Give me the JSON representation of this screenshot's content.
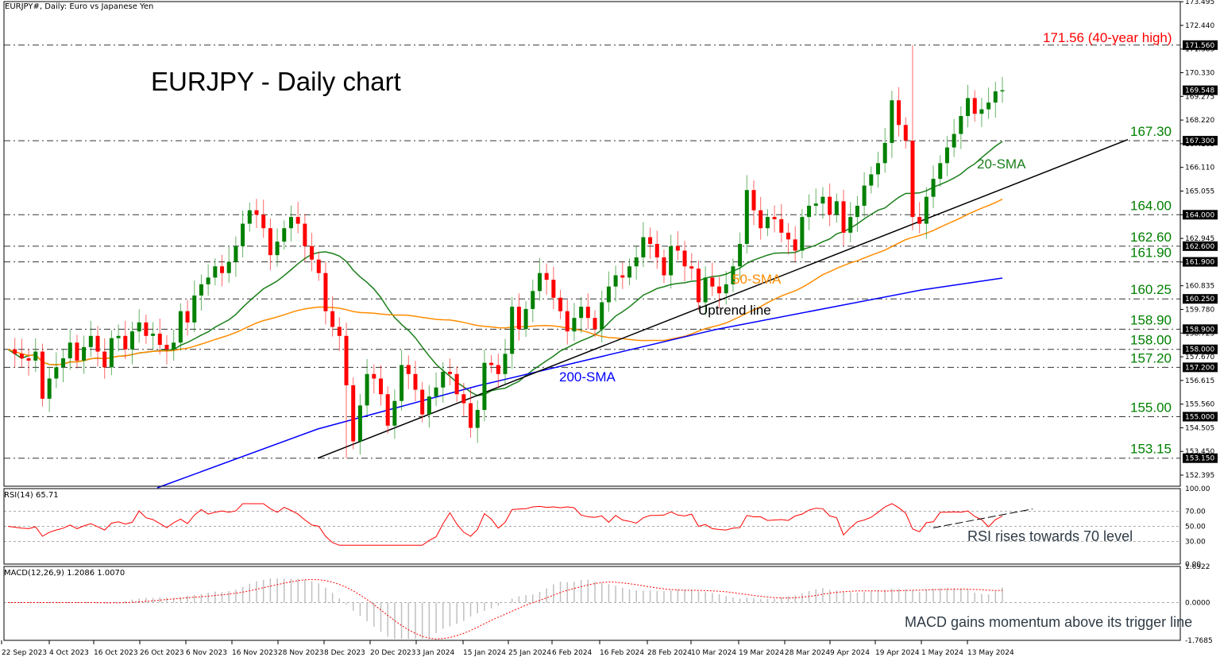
{
  "header": {
    "title": "EURJPY#, Daily:  Euro vs Japanese Yen"
  },
  "chart_title": "EURJPY - Daily chart",
  "annotations": {
    "high": "171.56 (40-year high)",
    "sma20": "20-SMA",
    "sma50": "50-SMA",
    "sma200": "200-SMA",
    "uptrend": "Uptrend line",
    "rsi_note": "RSI rises towards 70 level",
    "macd_note": "MACD gains momentum above its trigger line"
  },
  "rsi_label": "RSI(14) 65.71",
  "macd_label": "MACD(12,26,9) 1.2086 1.0070",
  "colors": {
    "bull": "#008000",
    "bear": "#ff0000",
    "sma20": "#1a7f1a",
    "sma50": "#ff8c00",
    "sma200": "#0000ff",
    "trend": "#000000",
    "level_text": "#008000",
    "high_text": "#ff0000",
    "rsi": "#ff0000",
    "macd_signal": "#ff0000",
    "macd_hist": "#c0c0c0"
  },
  "chart_data": [
    {
      "type": "candlestick",
      "title": "EURJPY - Daily chart",
      "ylim": [
        151.9,
        173.5
      ],
      "yticks": [
        173.495,
        172.44,
        171.385,
        170.33,
        169.275,
        168.22,
        167.165,
        166.11,
        165.055,
        164.0,
        162.945,
        161.89,
        160.835,
        159.78,
        158.725,
        157.67,
        156.615,
        155.56,
        154.505,
        153.45,
        152.395
      ],
      "price_tags": [
        "171.560",
        "169.548",
        "167.300",
        "164.000",
        "162.600",
        "161.900",
        "160.250",
        "158.900",
        "158.000",
        "157.200",
        "155.000",
        "153.150"
      ],
      "horizontal_levels": [
        171.56,
        167.3,
        164.0,
        162.6,
        161.9,
        160.25,
        158.9,
        158.0,
        157.2,
        155.0,
        153.15
      ],
      "level_labels": [
        "167.30",
        "164.00",
        "162.60",
        "161.90",
        "160.25",
        "158.90",
        "158.00",
        "157.20",
        "155.00",
        "153.15"
      ],
      "x_labels": [
        "22 Sep 2023",
        "4 Oct 2023",
        "16 Oct 2023",
        "26 Oct 2023",
        "6 Nov 2023",
        "16 Nov 2023",
        "28 Nov 2023",
        "8 Dec 2023",
        "20 Dec 2023",
        "3 Jan 2024",
        "15 Jan 2024",
        "25 Jan 2024",
        "6 Feb 2024",
        "16 Feb 2024",
        "28 Feb 2024",
        "10 Mar 2024",
        "19 Mar 2024",
        "28 Mar 2024",
        "9 Apr 2024",
        "19 Apr 2024",
        "1 May 2024",
        "13 May 2024"
      ],
      "close_path": [
        158.0,
        157.8,
        157.6,
        157.5,
        157.9,
        155.8,
        156.7,
        157.2,
        157.6,
        158.3,
        157.5,
        158.1,
        158.6,
        157.9,
        157.2,
        158.5,
        158.6,
        158.0,
        158.8,
        159.2,
        158.6,
        158.7,
        158.2,
        158.0,
        158.3,
        159.7,
        159.2,
        160.4,
        160.9,
        161.2,
        161.7,
        161.4,
        161.9,
        162.6,
        163.6,
        164.2,
        164.0,
        163.4,
        162.2,
        162.8,
        163.4,
        163.9,
        163.6,
        162.6,
        162.0,
        161.4,
        159.7,
        159.0,
        158.6,
        156.4,
        153.9,
        155.5,
        156.9,
        156.7,
        156.0,
        154.6,
        155.7,
        157.3,
        156.9,
        156.2,
        155.1,
        155.9,
        156.3,
        157.0,
        156.9,
        156.0,
        155.6,
        154.5,
        155.3,
        157.4,
        157.3,
        156.9,
        157.8,
        159.9,
        158.9,
        159.8,
        160.6,
        161.4,
        161.1,
        160.3,
        159.7,
        158.8,
        159.4,
        159.9,
        159.4,
        158.9,
        160.1,
        160.8,
        161.3,
        161.2,
        161.7,
        162.1,
        163.0,
        162.7,
        162.1,
        161.3,
        162.6,
        162.4,
        161.7,
        161.6,
        160.1,
        161.2,
        160.8,
        160.5,
        160.9,
        161.7,
        162.7,
        165.1,
        164.2,
        163.4,
        163.9,
        163.8,
        163.2,
        162.9,
        162.4,
        163.9,
        164.4,
        164.5,
        164.8,
        164.0,
        164.6,
        163.2,
        163.9,
        164.4,
        165.3,
        165.8,
        166.3,
        167.2,
        169.1,
        168.0,
        167.3,
        163.9,
        163.6,
        164.8,
        165.6,
        166.3,
        167.0,
        167.6,
        168.4,
        169.2,
        168.5,
        168.7,
        169.0,
        169.5,
        169.55
      ]
    },
    {
      "type": "line",
      "name": "RSI(14)",
      "ylim": [
        0,
        100
      ],
      "yticks": [
        100,
        70,
        50,
        30,
        0
      ],
      "last": 65.71
    },
    {
      "type": "bar+line",
      "name": "MACD(12,26,9)",
      "ylim": [
        -1.7685,
        1.6922
      ],
      "yticks": [
        1.6922,
        0.0,
        -1.7685
      ],
      "macd": 1.2086,
      "signal": 1.007
    }
  ]
}
